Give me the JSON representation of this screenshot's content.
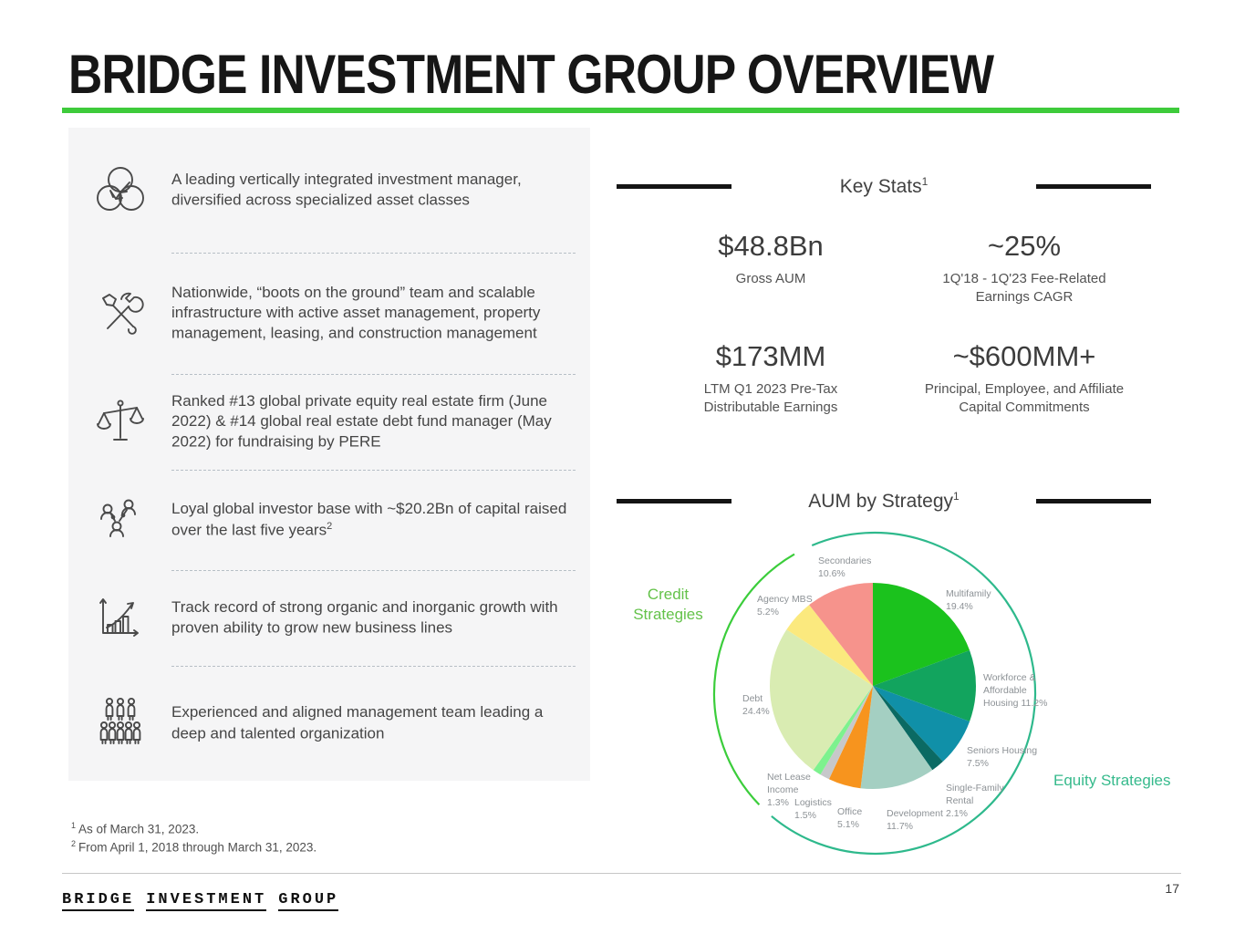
{
  "title": "BRIDGE INVESTMENT GROUP OVERVIEW",
  "accent_colors": {
    "title_rule_green": "#3ecb3b",
    "credit_strategies_green": "#64c24a",
    "equity_strategies_teal": "#36ba8c",
    "heading_bar_black": "#141414",
    "panel_gray": "#f5f5f6"
  },
  "left_panel": {
    "items": [
      {
        "icon": "integrated-circles-icon",
        "text": "A leading vertically integrated investment manager, diversified across specialized asset classes",
        "sup": ""
      },
      {
        "icon": "tools-icon",
        "text": "Nationwide, “boots on the ground” team and scalable infrastructure with active asset management, property management, leasing, and construction management",
        "sup": ""
      },
      {
        "icon": "scales-icon",
        "text": "Ranked #13 global private equity real estate firm (June 2022) & #14 global real estate debt fund manager (May 2022) for fundraising by PERE",
        "sup": ""
      },
      {
        "icon": "investor-network-icon",
        "text": "Loyal global investor base with ~$20.2Bn of capital raised over the last five years",
        "sup": "2"
      },
      {
        "icon": "growth-chart-icon",
        "text": "Track record of strong organic and inorganic growth with proven ability to grow new business lines",
        "sup": ""
      },
      {
        "icon": "team-people-icon",
        "text": "Experienced and aligned management team leading a deep and talented organization",
        "sup": ""
      }
    ]
  },
  "key_stats": {
    "heading": "Key Stats",
    "sup": "1",
    "stats": [
      {
        "value": "$48.8Bn",
        "label": "Gross AUM"
      },
      {
        "value": "~25%",
        "label": "1Q'18 - 1Q'23 Fee-Related Earnings CAGR"
      },
      {
        "value": "$173MM",
        "label": "LTM Q1 2023 Pre-Tax Distributable Earnings"
      },
      {
        "value": "~$600MM+",
        "label": "Principal, Employee, and Affiliate Capital Commitments"
      }
    ]
  },
  "chart_data": {
    "type": "pie",
    "title": "AUM by Strategy",
    "title_sup": "1",
    "start_angle": "top",
    "direction": "clockwise",
    "groups": [
      {
        "name": "credit",
        "label": "Credit Strategies",
        "color": "#64c24a"
      },
      {
        "name": "equity",
        "label": "Equity Strategies",
        "color": "#36ba8c"
      }
    ],
    "arcs": [
      {
        "name": "credit",
        "color": "#3bcd3b",
        "start": 226,
        "end": 330
      },
      {
        "name": "equity",
        "color": "#2eb98c",
        "start": 337,
        "end": 580
      }
    ],
    "slices": [
      {
        "name": "Multifamily",
        "value": 19.4,
        "color": "#1bc21d",
        "label": "Multifamily\n19.4%"
      },
      {
        "name": "Workforce & Affordable Housing",
        "value": 11.2,
        "color": "#12a45e",
        "label": "Workforce &\nAffordable\nHousing 11.2%"
      },
      {
        "name": "Seniors Housing",
        "value": 7.5,
        "color": "#1090a8",
        "label": "Seniors Housing\n7.5%"
      },
      {
        "name": "Single-Family Rental",
        "value": 2.1,
        "color": "#0b6a63",
        "label": "Single-Family\nRental\n2.1%"
      },
      {
        "name": "Development",
        "value": 11.7,
        "color": "#a4cfc2",
        "label": "Development\n11.7%"
      },
      {
        "name": "Office",
        "value": 5.1,
        "color": "#f7941e",
        "label": "Office\n5.1%"
      },
      {
        "name": "Logistics",
        "value": 1.5,
        "color": "#c7c8ca",
        "label": "Logistics\n1.5%"
      },
      {
        "name": "Net Lease Income",
        "value": 1.3,
        "color": "#7df28e",
        "label": "Net Lease\nIncome\n1.3%"
      },
      {
        "name": "Debt",
        "value": 24.4,
        "color": "#d9ecb2",
        "label": "Debt\n24.4%"
      },
      {
        "name": "Agency MBS",
        "value": 5.2,
        "color": "#fbe97e",
        "label": "Agency MBS\n5.2%"
      },
      {
        "name": "Secondaries",
        "value": 10.6,
        "color": "#f6938c",
        "label": "Secondaries\n10.6%"
      }
    ]
  },
  "footnotes": [
    {
      "sup": "1",
      "text": "As of March 31, 2023."
    },
    {
      "sup": "2",
      "text": "From April 1, 2018 through March 31, 2023."
    }
  ],
  "footer": {
    "logo_words": [
      "BRIDGE",
      "INVESTMENT",
      "GROUP"
    ],
    "page_number": "17"
  }
}
